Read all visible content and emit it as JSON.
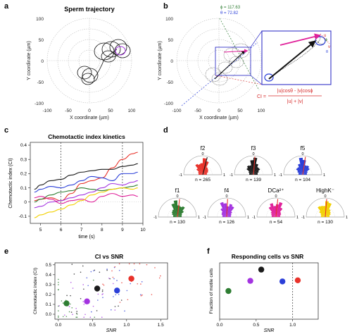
{
  "panel_letters": {
    "a": "a",
    "b": "b",
    "c": "c",
    "d": "d",
    "e": "e",
    "f": "f"
  },
  "colors": {
    "f2": "#e8322a",
    "f3": "#1a1a1a",
    "f5": "#2b3fd8",
    "f1": "#2e7d32",
    "f4": "#a333e0",
    "dca2": "#e0219a",
    "highk": "#f2d000"
  },
  "panel_a": {
    "title": "Sperm trajectory",
    "xlabel": "X coordinate (µm)",
    "ylabel": "Y coordinate (µm)",
    "xticks": [
      "-100",
      "-50",
      "0",
      "50",
      "100"
    ],
    "yticks": [
      "100",
      "50",
      "0",
      "-50",
      "-100"
    ]
  },
  "panel_b": {
    "xlabel": "X coordinate (µm)",
    "ylabel": "Y coordinate (µm)",
    "xticks": [
      "-100",
      "-50",
      "0",
      "50",
      "100"
    ],
    "yticks": [
      "100",
      "50",
      "0",
      "-50",
      "-100"
    ],
    "phi_label": "ϕ = 117.63",
    "theta_label": "θ = 72.82",
    "vec_labels": {
      "u": "u",
      "v": "v",
      "phi": "ϕ",
      "theta": "θ"
    },
    "ci_prefix": "CI =",
    "ci_numerator": "|u|cosθ - |v|cosϕ",
    "ci_denominator": "|u| + |v|"
  },
  "panel_d": {
    "angle_zero": "0",
    "minus_one": "-1",
    "plus_one": "1",
    "roses": [
      {
        "name": "f2",
        "n": "n = 265"
      },
      {
        "name": "f3",
        "n": "n = 139"
      },
      {
        "name": "f5",
        "n": "n = 104"
      },
      {
        "name": "f1",
        "n": "n = 130"
      },
      {
        "name": "f4",
        "n": "n = 126"
      },
      {
        "name": "DCa²⁺",
        "n": "n = 54"
      },
      {
        "name": "HighK⁻",
        "n": "n = 130"
      }
    ]
  },
  "chart_data": [
    {
      "panel": "c",
      "type": "line",
      "title": "Chemotactic index kinetics",
      "xlabel": "time (s)",
      "ylabel": "Chemotactic index (CI)",
      "xlim": [
        4.5,
        10
      ],
      "ylim": [
        -0.15,
        0.42
      ],
      "xticks": [
        5,
        6,
        7,
        8,
        9,
        10
      ],
      "yticks": [
        -0.1,
        0,
        0.1,
        0.2,
        0.3,
        0.4
      ],
      "vlines": [
        6,
        9
      ],
      "x": [
        4.7,
        5.0,
        5.5,
        6.0,
        6.5,
        7.0,
        7.5,
        8.0,
        8.5,
        9.0,
        9.5,
        9.75
      ],
      "series": [
        {
          "color": "#e8322a",
          "values": [
            0.01,
            0.02,
            0.03,
            0.01,
            0.06,
            0.13,
            0.15,
            0.17,
            0.24,
            0.3,
            0.34,
            0.35
          ]
        },
        {
          "color": "#1a1a1a",
          "values": [
            0.09,
            0.12,
            0.15,
            0.16,
            0.19,
            0.21,
            0.22,
            0.23,
            0.23,
            0.25,
            0.26,
            0.27
          ]
        },
        {
          "color": "#2b3fd8",
          "values": [
            0.07,
            0.09,
            0.11,
            0.1,
            0.12,
            0.15,
            0.18,
            0.17,
            0.15,
            0.2,
            0.2,
            0.21
          ]
        },
        {
          "color": "#2e7d32",
          "values": [
            0.0,
            0.02,
            0.05,
            0.07,
            0.08,
            0.1,
            0.09,
            0.08,
            0.09,
            0.1,
            0.11,
            0.12
          ]
        },
        {
          "color": "#a333e0",
          "values": [
            -0.04,
            -0.03,
            0.0,
            0.01,
            0.03,
            0.05,
            0.07,
            0.1,
            0.13,
            0.12,
            0.14,
            0.15
          ]
        },
        {
          "color": "#e0219a",
          "values": [
            0.03,
            0.04,
            0.02,
            -0.01,
            0.01,
            0.02,
            0.0,
            0.04,
            0.06,
            0.04,
            0.05,
            0.04
          ]
        },
        {
          "color": "#f2d000",
          "values": [
            -0.11,
            -0.09,
            -0.07,
            -0.05,
            -0.02,
            0.01,
            0.05,
            0.07,
            0.09,
            0.1,
            0.09,
            0.1
          ]
        }
      ]
    },
    {
      "panel": "e",
      "type": "scatter",
      "title": "CI vs SNR",
      "xlabel": "SNR",
      "ylabel": "Chemotactic index (CI)",
      "xlim": [
        -0.05,
        1.6
      ],
      "ylim": [
        -0.05,
        0.52
      ],
      "xticks": [
        0.0,
        0.5,
        1.0,
        1.5
      ],
      "yticks": [
        0.0,
        0.1,
        0.2,
        0.3,
        0.4,
        0.5
      ],
      "means": [
        {
          "color": "#2e7d32",
          "x": 0.12,
          "y": 0.11
        },
        {
          "color": "#a333e0",
          "x": 0.42,
          "y": 0.13
        },
        {
          "color": "#1a1a1a",
          "x": 0.57,
          "y": 0.26
        },
        {
          "color": "#2b3fd8",
          "x": 0.86,
          "y": 0.24
        },
        {
          "color": "#e8322a",
          "x": 1.07,
          "y": 0.36
        }
      ]
    },
    {
      "panel": "f",
      "type": "scatter",
      "title": "Responding cells vs SNR",
      "xlabel": "SNR",
      "ylabel": "Fraction of motile cells",
      "xlim": [
        0.0,
        1.35
      ],
      "ylim": [
        0.0,
        1.0
      ],
      "xticks": [
        0.0,
        0.5,
        1.0
      ],
      "vlines": [
        1.0
      ],
      "points": [
        {
          "color": "#2e7d32",
          "x": 0.12,
          "y": 0.5
        },
        {
          "color": "#a333e0",
          "x": 0.42,
          "y": 0.68
        },
        {
          "color": "#1a1a1a",
          "x": 0.57,
          "y": 0.88
        },
        {
          "color": "#2b3fd8",
          "x": 0.86,
          "y": 0.67
        },
        {
          "color": "#e8322a",
          "x": 1.07,
          "y": 0.69
        }
      ]
    }
  ]
}
